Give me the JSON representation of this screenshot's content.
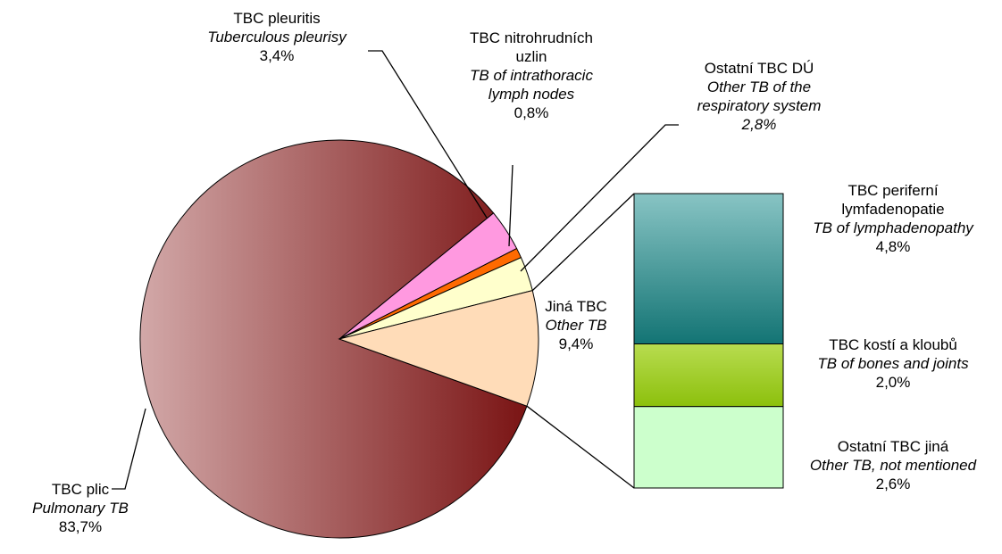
{
  "chart_data": {
    "type": "pie-of-bar",
    "categories": [
      "TBC plic",
      "TBC pleuritis",
      "TBC nitrohrudních uzlin",
      "Ostatní TBC DÚ",
      "Jiná TBC"
    ],
    "categories_en": [
      "Pulmonary TB",
      "Tuberculous pleurisy",
      "TB of intrathoracic lymph nodes",
      "Other TB of the respiratory system",
      "Other TB"
    ],
    "values": [
      83.7,
      3.4,
      0.8,
      2.8,
      9.4
    ],
    "value_labels": [
      "83,7%",
      "3,4%",
      "0,8%",
      "2,8%",
      "9,4%"
    ],
    "colors": [
      [
        "#d2a8a8",
        "#7a1414"
      ],
      "#ff99e0",
      "#ff6a00",
      "#ffffcc",
      "#ffdcb8"
    ],
    "bar": {
      "categories": [
        "TBC periferní lymfadenopatie",
        "TBC kostí a kloubů",
        "Ostatní TBC jiná"
      ],
      "categories_en": [
        "TB of lymphadenopathy",
        "TB of bones and joints",
        "Other TB, not mentioned"
      ],
      "values": [
        4.8,
        2.0,
        2.6
      ],
      "value_labels": [
        "4,8%",
        "2,0%",
        "2,6%"
      ],
      "colors": [
        [
          "#88c4c4",
          "#137474"
        ],
        [
          "#b8dc50",
          "#8cc00c"
        ],
        "#ccffcc"
      ]
    }
  }
}
